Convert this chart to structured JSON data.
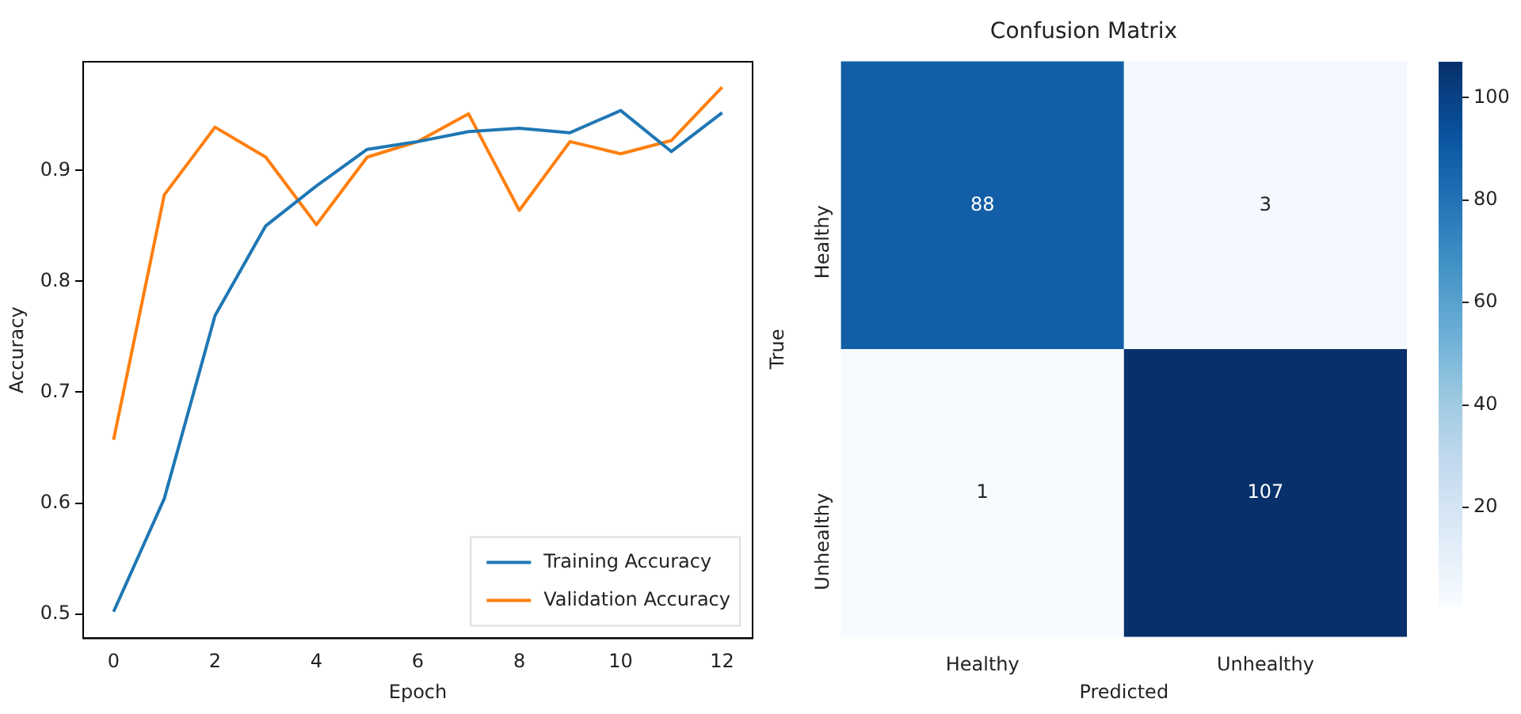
{
  "chart_data": [
    {
      "type": "line",
      "xlabel": "Epoch",
      "ylabel": "Accuracy",
      "x": [
        0,
        1,
        2,
        3,
        4,
        5,
        6,
        7,
        8,
        9,
        10,
        11,
        12
      ],
      "xlim": [
        -0.6,
        12.6
      ],
      "ylim": [
        0.478,
        0.998
      ],
      "xticks": [
        0,
        2,
        4,
        6,
        8,
        10,
        12
      ],
      "yticks": [
        0.5,
        0.6,
        0.7,
        0.8,
        0.9
      ],
      "grid": false,
      "legend": "bottom right",
      "marker": "none",
      "series": [
        {
          "name": "Training Accuracy",
          "color": "#1f77b4",
          "values": [
            0.502,
            0.604,
            0.769,
            0.85,
            0.886,
            0.919,
            0.926,
            0.935,
            0.938,
            0.934,
            0.954,
            0.917,
            0.952
          ]
        },
        {
          "name": "Validation Accuracy",
          "color": "#ff7f0e",
          "values": [
            0.657,
            0.878,
            0.939,
            0.912,
            0.851,
            0.912,
            0.926,
            0.951,
            0.864,
            0.926,
            0.915,
            0.927,
            0.975
          ]
        }
      ]
    },
    {
      "type": "heatmap",
      "title": "Confusion Matrix",
      "xlabel": "Predicted",
      "ylabel": "True",
      "categories": [
        "Healthy",
        "Unhealthy"
      ],
      "y_categories": [
        "Healthy",
        "Unhealthy"
      ],
      "cells": [
        [
          88,
          3
        ],
        [
          1,
          107
        ]
      ],
      "clim": [
        1,
        107
      ],
      "cticks": [
        20,
        40,
        60,
        80,
        100
      ],
      "data_labels": true
    }
  ]
}
